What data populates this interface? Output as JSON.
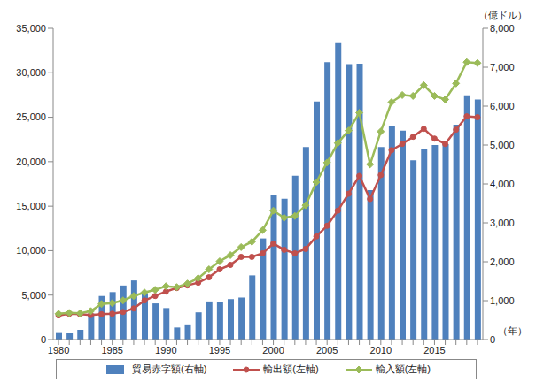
{
  "chart_data": {
    "type": "bar",
    "categories": [
      "1980",
      null,
      null,
      null,
      null,
      "1985",
      null,
      null,
      null,
      null,
      "1990",
      null,
      null,
      null,
      null,
      "1995",
      null,
      null,
      null,
      null,
      "2000",
      null,
      null,
      null,
      null,
      "2005",
      null,
      null,
      null,
      null,
      "2010",
      null,
      null,
      null,
      null,
      "2015",
      null,
      null,
      null,
      null
    ],
    "series": [
      {
        "name": "貿易赤字額(右軸)",
        "type": "bar",
        "axis": "y2",
        "color": "#4f81bd",
        "values": [
          190,
          160,
          250,
          670,
          1120,
          1220,
          1390,
          1520,
          1180,
          930,
          810,
          310,
          390,
          700,
          980,
          960,
          1040,
          1080,
          1650,
          2600,
          3720,
          3620,
          4210,
          4950,
          6120,
          7130,
          7620,
          7080,
          7090,
          3840,
          4950,
          5490,
          5370,
          4610,
          4890,
          5000,
          5020,
          5520,
          6280,
          6170
        ]
      },
      {
        "name": "輸出額(左軸)",
        "type": "line",
        "color": "#c0504d",
        "marker": "circle",
        "values": [
          2720,
          2900,
          2850,
          2750,
          2850,
          2900,
          3100,
          3500,
          4400,
          4900,
          5400,
          5800,
          6100,
          6400,
          7000,
          7900,
          8400,
          9300,
          9300,
          9700,
          10800,
          10100,
          9700,
          10200,
          11600,
          12800,
          14500,
          16400,
          18400,
          15800,
          18500,
          21300,
          22000,
          22800,
          23700,
          22600,
          22000,
          23600,
          25100,
          25000
        ]
      },
      {
        "name": "輸入額(左軸)",
        "type": "line",
        "color": "#9bbb59",
        "marker": "diamond",
        "values": [
          2900,
          3000,
          2950,
          3200,
          4000,
          4100,
          4400,
          4900,
          5300,
          5600,
          6000,
          5900,
          6300,
          6900,
          7900,
          8800,
          9500,
          10400,
          11000,
          12300,
          14500,
          13700,
          13900,
          15100,
          17700,
          19900,
          22100,
          23500,
          25500,
          19700,
          23400,
          26700,
          27500,
          27400,
          28600,
          27400,
          27000,
          28800,
          31200,
          31100
        ]
      }
    ],
    "ylim": [
      0,
      35000
    ],
    "yticks": [
      0,
      {
        "value": 5000,
        "label": "5,000"
      },
      {
        "value": 10000,
        "label": "10,000"
      },
      {
        "value": 15000,
        "label": "15,000"
      },
      {
        "value": 20000,
        "label": "20,000"
      },
      {
        "value": 25000,
        "label": "25,000"
      },
      {
        "value": 30000,
        "label": "30,000"
      },
      {
        "value": 35000,
        "label": "35,000"
      }
    ],
    "y2lim": [
      0,
      8000
    ],
    "y2ticks": [
      0,
      {
        "value": 1000,
        "label": "1,000"
      },
      {
        "value": 2000,
        "label": "2,000"
      },
      {
        "value": 3000,
        "label": "3,000"
      },
      {
        "value": 4000,
        "label": "4,000"
      },
      {
        "value": 5000,
        "label": "5,000"
      },
      {
        "value": 6000,
        "label": "6,000"
      },
      {
        "value": 7000,
        "label": "7,000"
      },
      {
        "value": 8000,
        "label": "8,000"
      }
    ],
    "x_label": "（年）",
    "y2_label": "（億ドル）",
    "grid": false,
    "legend": "bottom"
  }
}
